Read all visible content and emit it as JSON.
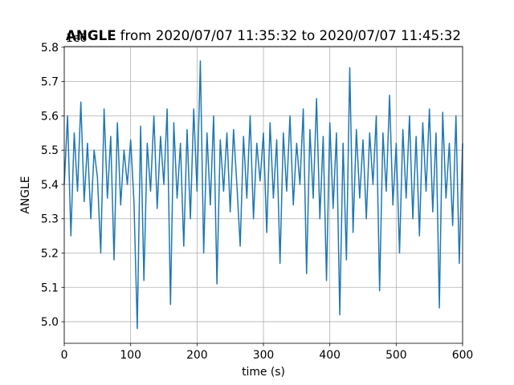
{
  "chart_data": {
    "type": "line",
    "title": [
      "ANGLE",
      "from 2020/07/07 11:35:32 to 2020/07/07 11:45:32"
    ],
    "x_label": "time (s)",
    "y_label": "ANGLE",
    "y_offset_label": "1e6",
    "color": "#1f77b4",
    "grid": true,
    "xlim": [
      0,
      600
    ],
    "ylim": [
      4.937,
      5.802
    ],
    "xticks": [
      0,
      100,
      200,
      300,
      400,
      500,
      600
    ],
    "yticks": [
      {
        "value": 5.0,
        "label": "5.0"
      },
      5.1,
      5.2,
      5.3,
      5.4,
      5.5,
      5.6,
      5.7,
      5.8
    ],
    "x": [
      0,
      5,
      10,
      15,
      20,
      25,
      30,
      35,
      40,
      45,
      50,
      55,
      60,
      65,
      70,
      75,
      80,
      85,
      90,
      95,
      100,
      105,
      110,
      115,
      120,
      125,
      130,
      135,
      140,
      145,
      150,
      155,
      160,
      165,
      170,
      175,
      180,
      185,
      190,
      195,
      200,
      205,
      210,
      215,
      220,
      225,
      230,
      235,
      240,
      245,
      250,
      255,
      260,
      265,
      270,
      275,
      280,
      285,
      290,
      295,
      300,
      305,
      310,
      315,
      320,
      325,
      330,
      335,
      340,
      345,
      350,
      355,
      360,
      365,
      370,
      375,
      380,
      385,
      390,
      395,
      400,
      405,
      410,
      415,
      420,
      425,
      430,
      435,
      440,
      445,
      450,
      455,
      460,
      465,
      470,
      475,
      480,
      485,
      490,
      495,
      500,
      505,
      510,
      515,
      520,
      525,
      530,
      535,
      540,
      545,
      550,
      555,
      560,
      565,
      570,
      575,
      580,
      585,
      590,
      595,
      600
    ],
    "values": [
      5.4,
      5.6,
      5.25,
      5.55,
      5.38,
      5.64,
      5.35,
      5.52,
      5.3,
      5.5,
      5.42,
      5.2,
      5.62,
      5.36,
      5.54,
      5.18,
      5.58,
      5.34,
      5.5,
      5.4,
      5.53,
      5.35,
      4.98,
      5.57,
      5.12,
      5.52,
      5.38,
      5.6,
      5.33,
      5.54,
      5.4,
      5.62,
      5.05,
      5.58,
      5.36,
      5.52,
      5.22,
      5.56,
      5.3,
      5.62,
      5.38,
      5.76,
      5.2,
      5.55,
      5.34,
      5.6,
      5.11,
      5.53,
      5.38,
      5.55,
      5.32,
      5.56,
      5.4,
      5.22,
      5.54,
      5.36,
      5.6,
      5.3,
      5.52,
      5.41,
      5.55,
      5.26,
      5.58,
      5.36,
      5.53,
      5.17,
      5.55,
      5.38,
      5.6,
      5.34,
      5.52,
      5.4,
      5.62,
      5.14,
      5.56,
      5.36,
      5.65,
      5.3,
      5.54,
      5.12,
      5.58,
      5.33,
      5.55,
      5.02,
      5.52,
      5.18,
      5.74,
      5.26,
      5.56,
      5.36,
      5.53,
      5.3,
      5.55,
      5.4,
      5.6,
      5.09,
      5.55,
      5.38,
      5.66,
      5.34,
      5.52,
      5.2,
      5.56,
      5.36,
      5.6,
      5.3,
      5.54,
      5.25,
      5.58,
      5.38,
      5.62,
      5.32,
      5.55,
      5.04,
      5.61,
      5.36,
      5.52,
      5.28,
      5.6,
      5.17,
      5.52
    ]
  }
}
